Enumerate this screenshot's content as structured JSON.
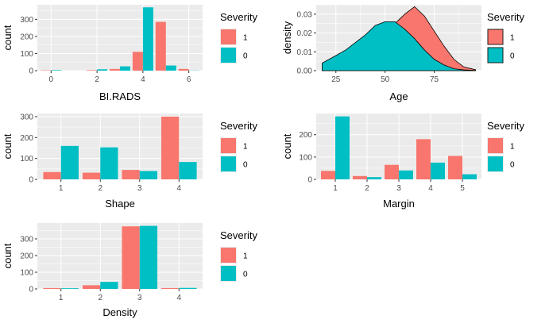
{
  "colors": {
    "severity_1": "#F8766D",
    "severity_0": "#00BFC4",
    "panel_bg": "#EBEBEB",
    "grid": "#FFFFFF"
  },
  "chart_data": [
    {
      "type": "bar",
      "xlabel": "BI.RADS",
      "ylabel": "count",
      "x_ticks": [
        "0",
        "2",
        "4",
        "6"
      ],
      "y_ticks": [
        "0",
        "100",
        "200",
        "300"
      ],
      "xlim": [
        -0.6,
        6.6
      ],
      "ylim": [
        0,
        385
      ],
      "categories": [
        "0",
        "2",
        "3",
        "4",
        "5",
        "6"
      ],
      "series": [
        {
          "name": "1",
          "values": [
            2,
            3,
            10,
            110,
            285,
            10
          ]
        },
        {
          "name": "0",
          "values": [
            3,
            8,
            25,
            370,
            30,
            1
          ]
        }
      ],
      "legend": {
        "title": "Severity",
        "labels": [
          "1",
          "0"
        ],
        "position": "right"
      }
    },
    {
      "type": "area",
      "xlabel": "Age",
      "ylabel": "density",
      "x_ticks": [
        "25",
        "50",
        "75"
      ],
      "y_ticks": [
        "0.00",
        "0.01",
        "0.02",
        "0.03"
      ],
      "xlim": [
        15,
        99
      ],
      "ylim": [
        0,
        0.035
      ],
      "x": [
        18,
        25,
        30,
        35,
        40,
        45,
        50,
        55,
        60,
        65,
        70,
        75,
        80,
        85,
        90,
        96
      ],
      "series": [
        {
          "name": "1",
          "values": [
            0.002,
            0.004,
            0.005,
            0.007,
            0.011,
            0.016,
            0.021,
            0.025,
            0.03,
            0.034,
            0.029,
            0.021,
            0.013,
            0.006,
            0.002,
            0.0005
          ]
        },
        {
          "name": "0",
          "values": [
            0.004,
            0.008,
            0.011,
            0.015,
            0.019,
            0.024,
            0.026,
            0.026,
            0.022,
            0.017,
            0.011,
            0.006,
            0.003,
            0.001,
            0.0004,
            0.0001
          ]
        }
      ],
      "legend": {
        "title": "Severity",
        "labels": [
          "1",
          "0"
        ],
        "position": "right"
      }
    },
    {
      "type": "bar",
      "xlabel": "Shape",
      "ylabel": "count",
      "x_ticks": [
        "1",
        "2",
        "3",
        "4"
      ],
      "y_ticks": [
        "0",
        "100",
        "200",
        "300"
      ],
      "xlim": [
        0.4,
        4.6
      ],
      "ylim": [
        0,
        315
      ],
      "categories": [
        "1",
        "2",
        "3",
        "4"
      ],
      "series": [
        {
          "name": "1",
          "values": [
            35,
            32,
            45,
            300
          ]
        },
        {
          "name": "0",
          "values": [
            160,
            153,
            40,
            83
          ]
        }
      ],
      "legend": {
        "title": "Severity",
        "labels": [
          "1",
          "0"
        ],
        "position": "right"
      }
    },
    {
      "type": "bar",
      "xlabel": "Margin",
      "ylabel": "count",
      "x_ticks": [
        "1",
        "2",
        "3",
        "4",
        "5"
      ],
      "y_ticks": [
        "0",
        "100",
        "200"
      ],
      "xlim": [
        0.4,
        5.6
      ],
      "ylim": [
        0,
        295
      ],
      "categories": [
        "1",
        "2",
        "3",
        "4",
        "5"
      ],
      "series": [
        {
          "name": "1",
          "values": [
            38,
            15,
            65,
            180,
            105
          ]
        },
        {
          "name": "0",
          "values": [
            282,
            10,
            40,
            75,
            23
          ]
        }
      ],
      "legend": {
        "title": "Severity",
        "labels": [
          "1",
          "0"
        ],
        "position": "right"
      }
    },
    {
      "type": "bar",
      "xlabel": "Density",
      "ylabel": "count",
      "x_ticks": [
        "1",
        "2",
        "3",
        "4"
      ],
      "y_ticks": [
        "0",
        "100",
        "200",
        "300"
      ],
      "xlim": [
        0.4,
        4.6
      ],
      "ylim": [
        0,
        395
      ],
      "categories": [
        "1",
        "2",
        "3",
        "4"
      ],
      "series": [
        {
          "name": "1",
          "values": [
            5,
            22,
            375,
            5
          ]
        },
        {
          "name": "0",
          "values": [
            4,
            42,
            378,
            6
          ]
        }
      ],
      "legend": {
        "title": "Severity",
        "labels": [
          "1",
          "0"
        ],
        "position": "right"
      }
    }
  ]
}
